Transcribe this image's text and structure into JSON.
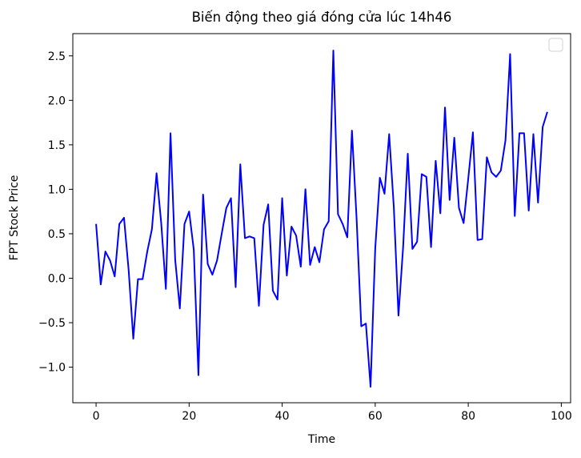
{
  "chart_data": {
    "type": "line",
    "title": "Biến động theo giá đóng cửa lúc 14h46",
    "xlabel": "Time",
    "ylabel": "FPT Stock Price",
    "xlim": [
      -5,
      102
    ],
    "ylim": [
      -1.4,
      2.75
    ],
    "xticks": [
      0,
      20,
      40,
      60,
      80,
      100
    ],
    "xtick_labels": [
      "0",
      "20",
      "40",
      "60",
      "80",
      "100"
    ],
    "yticks": [
      -1.0,
      -0.5,
      0.0,
      0.5,
      1.0,
      1.5,
      2.0,
      2.5
    ],
    "ytick_labels": [
      "−1.0",
      "−0.5",
      "0.0",
      "0.5",
      "1.0",
      "1.5",
      "2.0",
      "2.5"
    ],
    "grid": false,
    "legend": "top-right (empty)",
    "series": [
      {
        "color": "#0000ff",
        "x": [
          0,
          1,
          2,
          3,
          4,
          5,
          6,
          7,
          8,
          9,
          10,
          11,
          12,
          13,
          14,
          15,
          16,
          17,
          18,
          19,
          20,
          21,
          22,
          23,
          24,
          25,
          26,
          27,
          28,
          29,
          30,
          31,
          32,
          33,
          34,
          35,
          36,
          37,
          38,
          39,
          40,
          41,
          42,
          43,
          44,
          45,
          46,
          47,
          48,
          49,
          50,
          51,
          52,
          53,
          54,
          55,
          56,
          57,
          58,
          59,
          60,
          61,
          62,
          63,
          64,
          65,
          66,
          67,
          68,
          69,
          70,
          71,
          72,
          73,
          74,
          75,
          76,
          77,
          78,
          79,
          80,
          81,
          82,
          83,
          84,
          85,
          86,
          87,
          88,
          89,
          90,
          91,
          92,
          93,
          94,
          95,
          96,
          97
        ],
        "values": [
          0.61,
          -0.07,
          0.3,
          0.2,
          0.02,
          0.61,
          0.68,
          0.09,
          -0.68,
          -0.01,
          -0.01,
          0.3,
          0.55,
          1.18,
          0.62,
          -0.12,
          1.63,
          0.21,
          -0.34,
          0.61,
          0.75,
          0.32,
          -1.09,
          0.94,
          0.16,
          0.04,
          0.2,
          0.5,
          0.79,
          0.9,
          -0.1,
          1.28,
          0.45,
          0.47,
          0.45,
          -0.31,
          0.6,
          0.83,
          -0.14,
          -0.24,
          0.9,
          0.03,
          0.58,
          0.48,
          0.13,
          1.0,
          0.15,
          0.35,
          0.18,
          0.55,
          0.64,
          2.56,
          0.72,
          0.61,
          0.46,
          1.66,
          0.67,
          -0.54,
          -0.51,
          -1.22,
          0.33,
          1.13,
          0.95,
          1.62,
          0.8,
          -0.42,
          0.35,
          1.4,
          0.33,
          0.41,
          1.17,
          1.14,
          0.35,
          1.32,
          0.73,
          1.92,
          0.88,
          1.58,
          0.79,
          0.62,
          1.12,
          1.64,
          0.43,
          0.44,
          1.36,
          1.19,
          1.14,
          1.21,
          1.55,
          2.52,
          0.7,
          1.63,
          1.63,
          0.76,
          1.62,
          0.85,
          1.7,
          1.87
        ]
      }
    ]
  }
}
